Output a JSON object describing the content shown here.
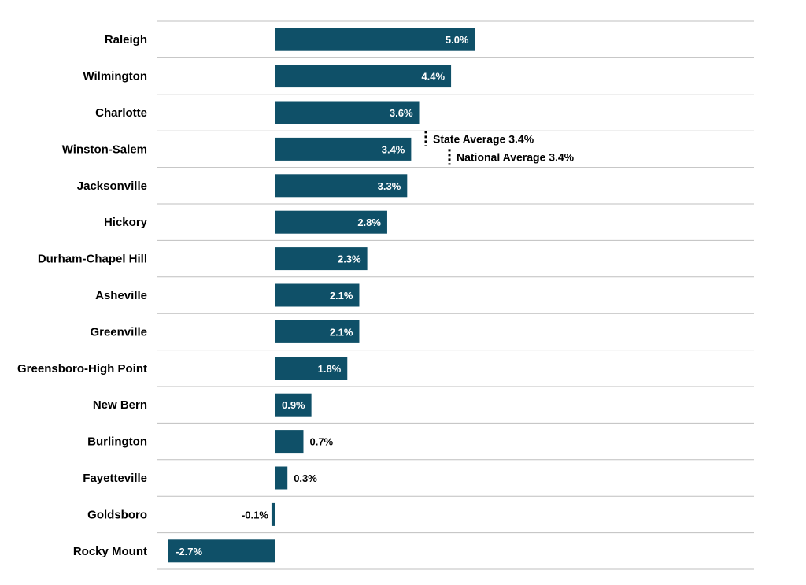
{
  "chart_data": {
    "type": "bar",
    "orientation": "horizontal",
    "categories": [
      "Raleigh",
      "Wilmington",
      "Charlotte",
      "Winston-Salem",
      "Jacksonville",
      "Hickory",
      "Durham-Chapel Hill",
      "Asheville",
      "Greenville",
      "Greensboro-High Point",
      "New Bern",
      "Burlington",
      "Fayetteville",
      "Goldsboro",
      "Rocky Mount"
    ],
    "values": [
      5.0,
      4.4,
      3.6,
      3.4,
      3.3,
      2.8,
      2.3,
      2.1,
      2.1,
      1.8,
      0.9,
      0.7,
      0.3,
      -0.1,
      -2.7
    ],
    "value_labels": [
      "5.0%",
      "4.4%",
      "3.6%",
      "3.4%",
      "3.3%",
      "2.8%",
      "2.3%",
      "2.1%",
      "2.1%",
      "1.8%",
      "0.9%",
      "0.7%",
      "0.3%",
      "-0.1%",
      "-2.7%"
    ],
    "title": "",
    "xlabel": "",
    "ylabel": "",
    "xlim": [
      -2.7,
      12.1
    ],
    "grid": true,
    "legend": "none",
    "bar_color": "#0f5068",
    "reference_lines": [
      {
        "label": "State Average 3.4%",
        "value": 3.4
      },
      {
        "label": "National Average 3.4%",
        "value": 3.4
      }
    ]
  }
}
